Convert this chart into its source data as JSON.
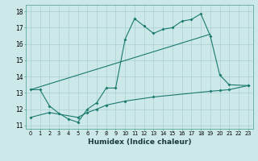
{
  "xlabel": "Humidex (Indice chaleur)",
  "bg_color": "#cce8e8",
  "grid_color": "#aacfcf",
  "line_color": "#1a7a6e",
  "xlim": [
    -0.5,
    23.5
  ],
  "ylim": [
    10.8,
    18.4
  ],
  "xticks": [
    0,
    1,
    2,
    3,
    4,
    5,
    6,
    7,
    8,
    9,
    10,
    11,
    12,
    13,
    14,
    15,
    16,
    17,
    18,
    19,
    20,
    21,
    22,
    23
  ],
  "yticks": [
    11,
    12,
    13,
    14,
    15,
    16,
    17,
    18
  ],
  "line1_x": [
    0,
    1,
    2,
    3,
    4,
    5,
    6,
    7,
    8,
    9,
    10,
    11,
    12,
    13,
    14,
    15,
    16,
    17,
    18,
    19,
    20,
    21,
    23
  ],
  "line1_y": [
    13.2,
    13.2,
    12.2,
    11.75,
    11.4,
    11.2,
    12.0,
    12.4,
    13.3,
    13.3,
    16.3,
    17.55,
    17.1,
    16.65,
    16.9,
    17.0,
    17.4,
    17.5,
    17.85,
    16.5,
    14.1,
    13.5,
    13.45
  ],
  "line2_x": [
    0,
    19
  ],
  "line2_y": [
    13.2,
    16.6
  ],
  "line3_x": [
    0,
    2,
    5,
    6,
    7,
    8,
    10,
    13,
    19,
    20,
    21,
    23
  ],
  "line3_y": [
    11.5,
    11.8,
    11.5,
    11.8,
    12.0,
    12.25,
    12.5,
    12.75,
    13.1,
    13.15,
    13.2,
    13.45
  ]
}
